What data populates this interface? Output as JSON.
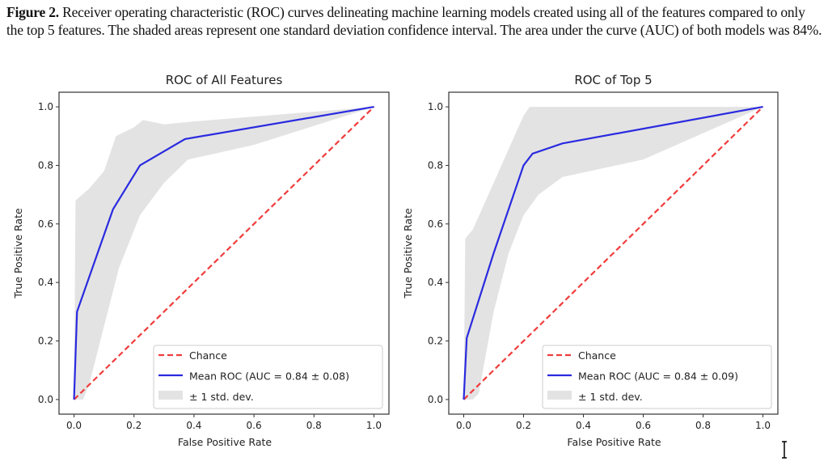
{
  "caption": {
    "label": "Figure 2.",
    "text": " Receiver operating characteristic (ROC) curves delineating machine learning models created using all of the features compared to only the top 5 features. The shaded areas represent one standard deviation confidence interval. The area under the curve (AUC) of both models was 84%."
  },
  "colors": {
    "chance": "#f03c3c",
    "mean_roc": "#2a2ae0",
    "band": "#e3e3e3"
  },
  "chart_data": [
    {
      "type": "line",
      "title": "ROC of All Features",
      "xlabel": "False Positive Rate",
      "ylabel": "True Positive Rate",
      "xlim": [
        -0.05,
        1.05
      ],
      "ylim": [
        -0.05,
        1.05
      ],
      "xticks": [
        "0.0",
        "0.2",
        "0.4",
        "0.6",
        "0.8",
        "1.0"
      ],
      "yticks": [
        "0.0",
        "0.2",
        "0.4",
        "0.6",
        "0.8",
        "1.0"
      ],
      "legend": {
        "placement": "lower-right",
        "entries": [
          "Chance",
          "Mean ROC (AUC = 0.84 ± 0.08)",
          "± 1 std. dev."
        ]
      },
      "series": [
        {
          "name": "Chance",
          "x": [
            0,
            1
          ],
          "y": [
            0,
            1
          ]
        },
        {
          "name": "Mean ROC (AUC = 0.84 ± 0.08)",
          "x": [
            0,
            0.01,
            0.13,
            0.22,
            0.37,
            1.0
          ],
          "y": [
            0,
            0.3,
            0.65,
            0.8,
            0.89,
            1.0
          ]
        }
      ],
      "band": {
        "name": "± 1 std. dev.",
        "upper": {
          "x": [
            0,
            0.005,
            0.05,
            0.1,
            0.14,
            0.2,
            0.23,
            0.3,
            0.4,
            1.0
          ],
          "y": [
            0,
            0.68,
            0.72,
            0.78,
            0.9,
            0.93,
            0.955,
            0.94,
            0.95,
            1.0
          ]
        },
        "lower": {
          "x": [
            0,
            0.03,
            0.05,
            0.1,
            0.15,
            0.22,
            0.3,
            0.38,
            0.6,
            1.0
          ],
          "y": [
            0,
            0,
            0.05,
            0.25,
            0.45,
            0.63,
            0.74,
            0.82,
            0.87,
            1.0
          ]
        }
      }
    },
    {
      "type": "line",
      "title": "ROC of Top 5",
      "xlabel": "False Positive Rate",
      "ylabel": "True Positive Rate",
      "xlim": [
        -0.05,
        1.05
      ],
      "ylim": [
        -0.05,
        1.05
      ],
      "xticks": [
        "0.0",
        "0.2",
        "0.4",
        "0.6",
        "0.8",
        "1.0"
      ],
      "yticks": [
        "0.0",
        "0.2",
        "0.4",
        "0.6",
        "0.8",
        "1.0"
      ],
      "legend": {
        "placement": "lower-right",
        "entries": [
          "Chance",
          "Mean ROC (AUC = 0.84 ± 0.09)",
          "± 1 std. dev."
        ]
      },
      "series": [
        {
          "name": "Chance",
          "x": [
            0,
            1
          ],
          "y": [
            0,
            1
          ]
        },
        {
          "name": "Mean ROC (AUC = 0.84 ± 0.09)",
          "x": [
            0,
            0.01,
            0.1,
            0.2,
            0.23,
            0.33,
            1.0
          ],
          "y": [
            0,
            0.21,
            0.5,
            0.8,
            0.84,
            0.875,
            1.0
          ]
        }
      ],
      "band": {
        "name": "± 1 std. dev.",
        "upper": {
          "x": [
            0,
            0.005,
            0.03,
            0.1,
            0.2,
            0.22,
            0.3,
            1.0
          ],
          "y": [
            0,
            0.55,
            0.58,
            0.74,
            0.97,
            1.0,
            1.0,
            1.0
          ]
        },
        "lower": {
          "x": [
            0,
            0.03,
            0.05,
            0.1,
            0.15,
            0.2,
            0.25,
            0.33,
            0.6,
            1.0
          ],
          "y": [
            0,
            0,
            0.02,
            0.3,
            0.5,
            0.63,
            0.7,
            0.76,
            0.82,
            1.0
          ]
        }
      }
    }
  ]
}
